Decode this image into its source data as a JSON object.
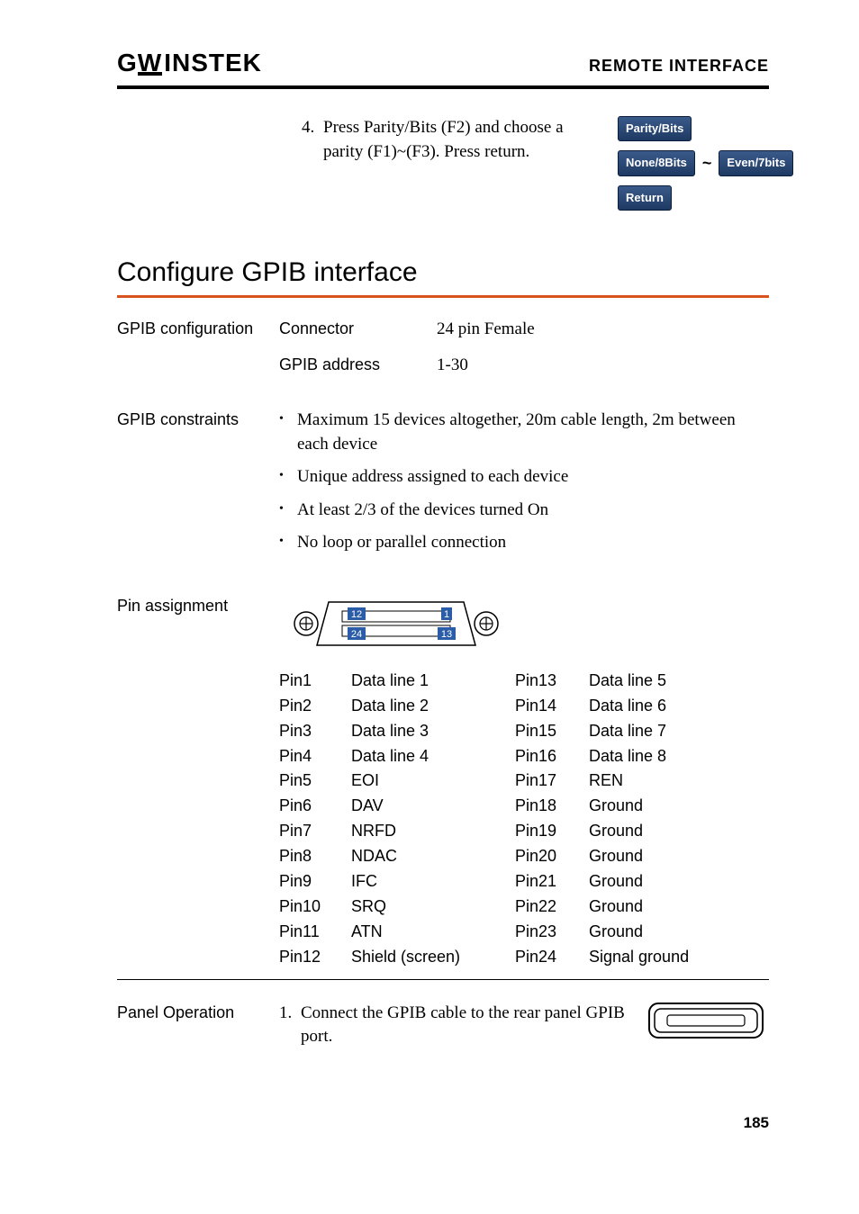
{
  "header": {
    "brand_gw": "G",
    "brand_w": "W",
    "brand_instek": "INSTEK",
    "section": "REMOTE INTERFACE"
  },
  "step": {
    "number": "4.",
    "text": "Press Parity/Bits (F2) and choose a parity (F1)~(F3). Press return.",
    "btn_parity": "Parity/Bits",
    "btn_none": "None/8Bits",
    "tilde": "~",
    "btn_even": "Even/7bits",
    "btn_return": "Return"
  },
  "config_heading": "Configure GPIB interface",
  "gpib_config": {
    "label": "GPIB configuration",
    "connector_label": "Connector",
    "connector_value": "24 pin Female",
    "addr_label": "GPIB address",
    "addr_value": "1-30"
  },
  "constraints": {
    "label": "GPIB constraints",
    "items": [
      "Maximum 15 devices altogether, 20m cable length, 2m between each device",
      "Unique address assigned to each device",
      "At least 2/3 of the devices turned On",
      "No loop or parallel connection"
    ]
  },
  "pins": {
    "label": "Pin assignment",
    "diagram": {
      "tl": "12",
      "tr": "1",
      "bl": "24",
      "br": "13"
    },
    "left": [
      [
        "Pin1",
        "Data line 1"
      ],
      [
        "Pin2",
        "Data line 2"
      ],
      [
        "Pin3",
        "Data line 3"
      ],
      [
        "Pin4",
        "Data line 4"
      ],
      [
        "Pin5",
        "EOI"
      ],
      [
        "Pin6",
        "DAV"
      ],
      [
        "Pin7",
        "NRFD"
      ],
      [
        "Pin8",
        "NDAC"
      ],
      [
        "Pin9",
        "IFC"
      ],
      [
        "Pin10",
        "SRQ"
      ],
      [
        "Pin11",
        "ATN"
      ],
      [
        "Pin12",
        "Shield (screen)"
      ]
    ],
    "right": [
      [
        "Pin13",
        "Data line 5"
      ],
      [
        "Pin14",
        "Data line 6"
      ],
      [
        "Pin15",
        "Data line 7"
      ],
      [
        "Pin16",
        "Data line 8"
      ],
      [
        "Pin17",
        "REN"
      ],
      [
        "Pin18",
        "Ground"
      ],
      [
        "Pin19",
        "Ground"
      ],
      [
        "Pin20",
        "Ground"
      ],
      [
        "Pin21",
        "Ground"
      ],
      [
        "Pin22",
        "Ground"
      ],
      [
        "Pin23",
        "Ground"
      ],
      [
        "Pin24",
        "Signal ground"
      ]
    ]
  },
  "panel": {
    "label": "Panel Operation",
    "number": "1.",
    "text": "Connect the GPIB cable to the rear panel GPIB port."
  },
  "page_number": "185",
  "colors": {
    "orange": "#d9531e",
    "btn_top": "#3a5a8a",
    "btn_bot": "#1e3a63"
  }
}
